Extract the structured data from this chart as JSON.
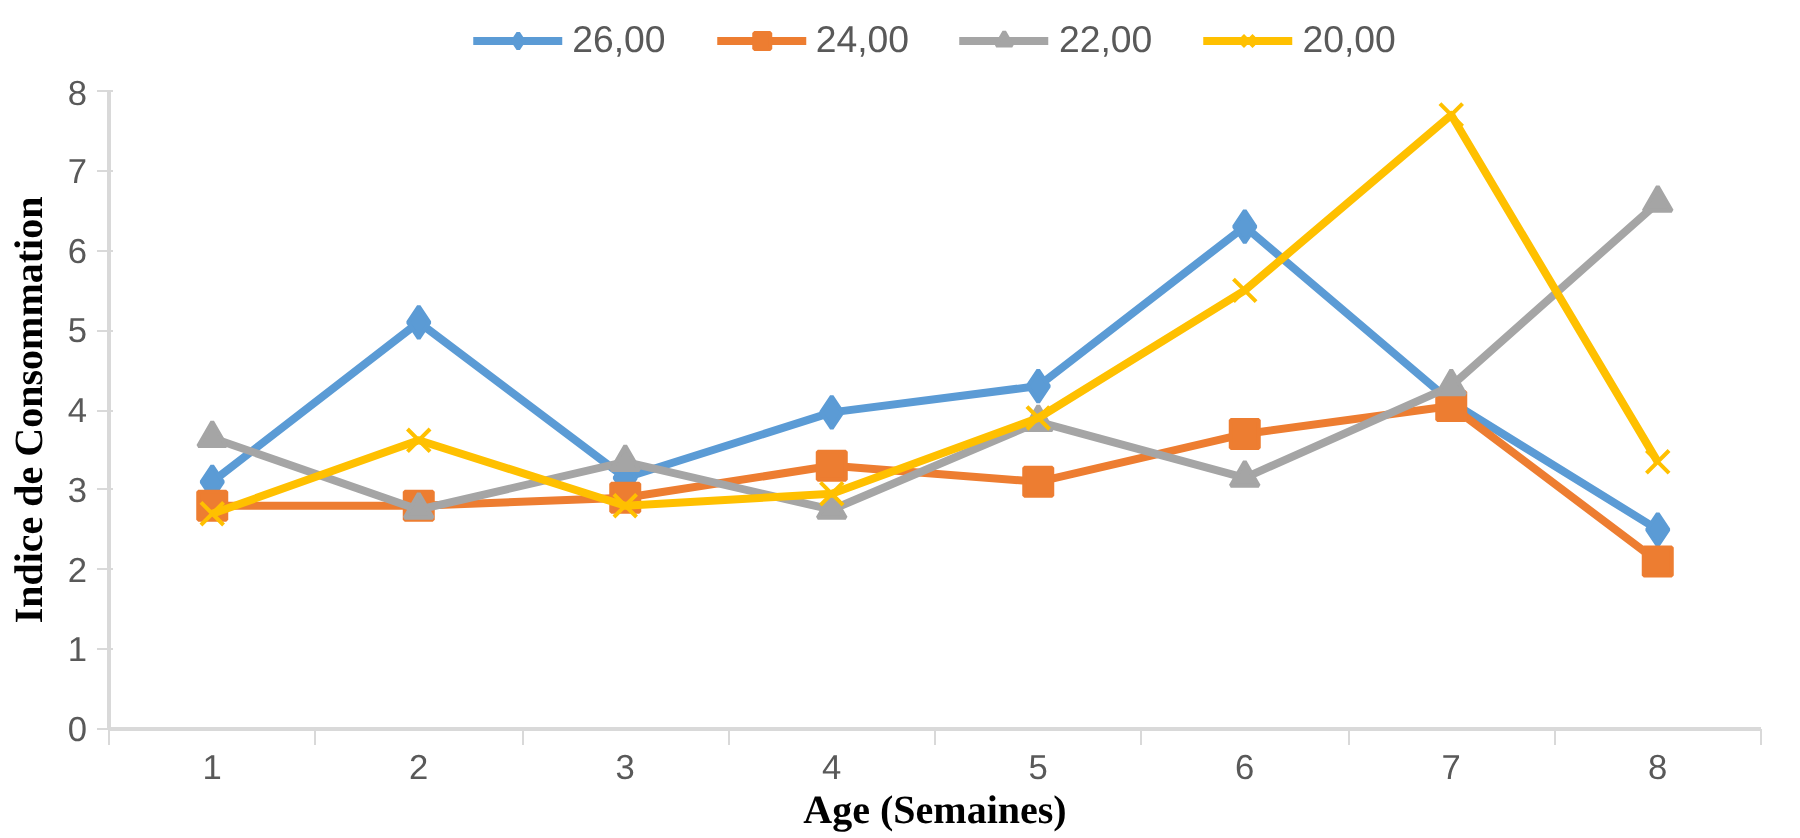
{
  "chart_data": {
    "type": "line",
    "xlabel": "Age (Semaines)",
    "ylabel": "Indice de Consommation",
    "categories": [
      "1",
      "2",
      "3",
      "4",
      "5",
      "6",
      "7",
      "8"
    ],
    "ylim": [
      0,
      8
    ],
    "yticks": [
      0,
      1,
      2,
      3,
      4,
      5,
      6,
      7,
      8
    ],
    "grid": false,
    "legend": "top",
    "series": [
      {
        "name": "26,00",
        "color": "#5b9bd5",
        "marker": "diamond",
        "values": [
          3.1,
          5.1,
          3.15,
          3.97,
          4.3,
          6.3,
          4.1,
          2.5
        ]
      },
      {
        "name": "24,00",
        "color": "#ed7d31",
        "marker": "square",
        "values": [
          2.8,
          2.8,
          2.9,
          3.3,
          3.1,
          3.7,
          4.05,
          2.1
        ]
      },
      {
        "name": "22,00",
        "color": "#a5a5a5",
        "marker": "triangle",
        "values": [
          3.65,
          2.75,
          3.35,
          2.75,
          3.85,
          3.15,
          4.3,
          6.6
        ]
      },
      {
        "name": "20,00",
        "color": "#ffc000",
        "marker": "cross",
        "values": [
          2.7,
          3.62,
          2.8,
          2.95,
          3.9,
          5.5,
          7.7,
          3.35
        ]
      }
    ]
  }
}
